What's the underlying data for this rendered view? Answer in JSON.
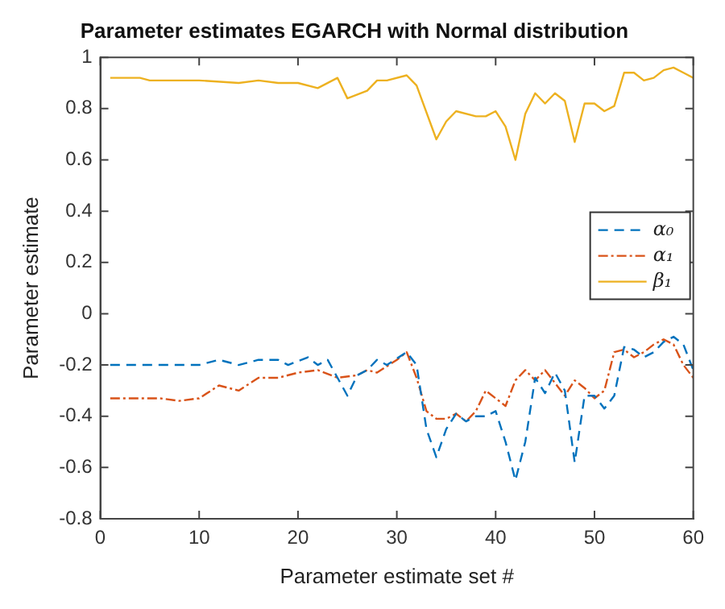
{
  "chart_data": {
    "type": "line",
    "title": "Parameter estimates EGARCH with Normal distribution",
    "xlabel": "Parameter estimate set #",
    "ylabel": "Parameter estimate",
    "xlim": [
      0,
      60
    ],
    "xticks": [
      0,
      10,
      20,
      30,
      40,
      50,
      60
    ],
    "ylim": [
      -0.8,
      1
    ],
    "yticks": [
      -0.8,
      -0.6,
      -0.4,
      -0.2,
      0,
      0.2,
      0.4,
      0.6,
      0.8,
      1
    ],
    "grid": false,
    "legend": "right",
    "marker": "none",
    "series": [
      {
        "name": "α₀",
        "color": "#0072bd",
        "line_style": "dashed",
        "x": [
          1,
          10,
          12,
          14,
          16,
          18,
          19,
          21,
          22,
          23,
          25,
          26,
          27,
          28,
          29,
          31,
          32,
          33,
          34,
          35,
          36,
          37,
          38,
          39,
          40,
          41,
          42,
          43,
          44,
          45,
          46,
          47,
          48,
          49,
          50,
          51,
          52,
          53,
          54,
          55,
          56,
          57,
          58,
          59,
          60
        ],
        "values": [
          -0.2,
          -0.2,
          -0.18,
          -0.2,
          -0.18,
          -0.18,
          -0.2,
          -0.17,
          -0.2,
          -0.18,
          -0.32,
          -0.24,
          -0.22,
          -0.18,
          -0.2,
          -0.15,
          -0.2,
          -0.45,
          -0.56,
          -0.45,
          -0.39,
          -0.42,
          -0.4,
          -0.4,
          -0.38,
          -0.5,
          -0.65,
          -0.5,
          -0.25,
          -0.31,
          -0.23,
          -0.3,
          -0.58,
          -0.32,
          -0.32,
          -0.37,
          -0.32,
          -0.13,
          -0.14,
          -0.17,
          -0.15,
          -0.11,
          -0.09,
          -0.12,
          -0.22
        ]
      },
      {
        "name": "α₁",
        "color": "#d95319",
        "line_style": "dotted",
        "x": [
          1,
          6,
          8,
          10,
          12,
          14,
          16,
          18,
          20,
          22,
          24,
          26,
          27,
          28,
          30,
          31,
          32,
          33,
          34,
          35,
          36,
          37,
          38,
          39,
          40,
          41,
          42,
          43,
          44,
          45,
          46,
          47,
          48,
          49,
          50,
          51,
          52,
          53,
          54,
          55,
          56,
          57,
          58,
          59,
          60
        ],
        "values": [
          -0.33,
          -0.33,
          -0.34,
          -0.33,
          -0.28,
          -0.3,
          -0.25,
          -0.25,
          -0.23,
          -0.22,
          -0.25,
          -0.24,
          -0.22,
          -0.23,
          -0.18,
          -0.15,
          -0.25,
          -0.38,
          -0.41,
          -0.41,
          -0.39,
          -0.42,
          -0.38,
          -0.3,
          -0.33,
          -0.36,
          -0.26,
          -0.22,
          -0.26,
          -0.22,
          -0.27,
          -0.32,
          -0.26,
          -0.29,
          -0.33,
          -0.3,
          -0.15,
          -0.14,
          -0.17,
          -0.15,
          -0.12,
          -0.1,
          -0.12,
          -0.2,
          -0.25
        ]
      },
      {
        "name": "β₁",
        "color": "#edb120",
        "line_style": "solid",
        "x": [
          1,
          4,
          5,
          10,
          14,
          16,
          18,
          20,
          22,
          24,
          25,
          27,
          28,
          29,
          31,
          32,
          34,
          35,
          36,
          38,
          39,
          40,
          41,
          42,
          43,
          44,
          45,
          46,
          47,
          48,
          49,
          50,
          51,
          52,
          53,
          54,
          55,
          56,
          57,
          58,
          59,
          60
        ],
        "values": [
          0.92,
          0.92,
          0.91,
          0.91,
          0.9,
          0.91,
          0.9,
          0.9,
          0.88,
          0.92,
          0.84,
          0.87,
          0.91,
          0.91,
          0.93,
          0.89,
          0.68,
          0.75,
          0.79,
          0.77,
          0.77,
          0.79,
          0.73,
          0.6,
          0.78,
          0.86,
          0.82,
          0.86,
          0.83,
          0.67,
          0.82,
          0.82,
          0.79,
          0.81,
          0.94,
          0.94,
          0.91,
          0.92,
          0.95,
          0.96,
          0.94,
          0.92
        ]
      }
    ]
  }
}
